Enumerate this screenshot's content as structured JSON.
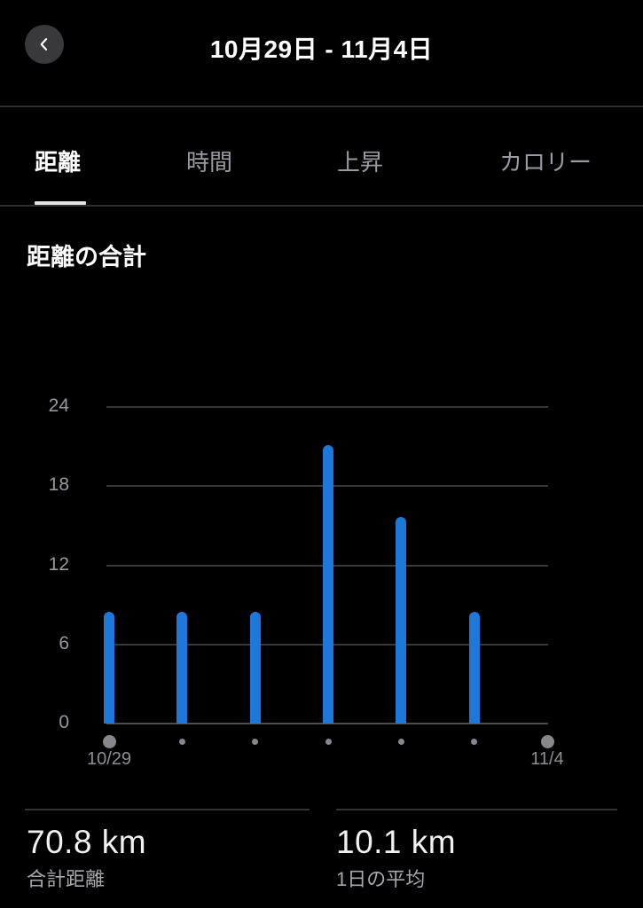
{
  "header": {
    "title": "10月29日 - 11月4日"
  },
  "tabs": {
    "items": [
      {
        "label": "距離",
        "active": true
      },
      {
        "label": "時間",
        "active": false
      },
      {
        "label": "上昇",
        "active": false
      },
      {
        "label": "カロリー",
        "active": false
      }
    ]
  },
  "section": {
    "title": "距離の合計"
  },
  "chart_data": {
    "type": "bar",
    "title": "距離の合計",
    "unit": "km",
    "x": [
      "10/29",
      "10/30",
      "10/31",
      "11/1",
      "11/2",
      "11/3",
      "11/4"
    ],
    "values": [
      8.5,
      8.5,
      8.5,
      21.1,
      15.7,
      8.5,
      0
    ],
    "ylim": [
      0,
      24
    ],
    "yticks": [
      0,
      6,
      12,
      18,
      24
    ],
    "x_tick_labels_shown": [
      "10/29",
      "11/4"
    ],
    "axis_dot_emphasis": [
      "large",
      "small",
      "small",
      "small",
      "small",
      "small",
      "large"
    ],
    "grid": "horizontal",
    "legend_position": "none",
    "bar_color": "#1e78d9",
    "gridline_color": "#38383b",
    "axis_label_color": "#98989d"
  },
  "stats": {
    "total": {
      "value": "70.8 km",
      "label": "合計距離"
    },
    "average": {
      "value": "10.1 km",
      "label": "1日の平均"
    }
  },
  "colors": {
    "background": "#000000",
    "accent_blue": "#1e78d9",
    "inactive_tab": "#9a9aa0",
    "divider": "#303033",
    "dot_gray": "#87878c"
  }
}
